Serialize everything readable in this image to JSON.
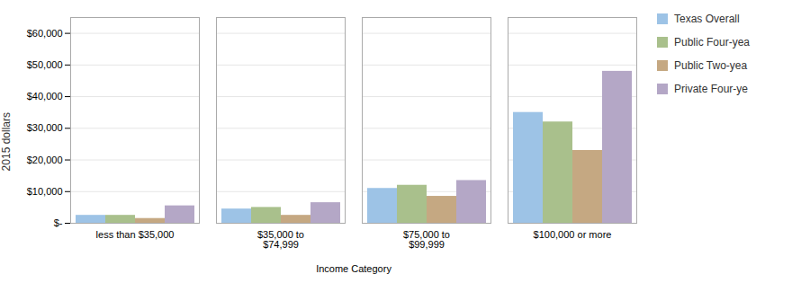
{
  "chart_data": {
    "type": "bar",
    "categories": [
      "less than $35,000",
      "$35,000 to\n$74,999",
      "$75,000 to\n$99,999",
      "$100,000 or more"
    ],
    "series": [
      {
        "name": "Texas Overall",
        "color": "#9dc3e6",
        "values": [
          2500,
          4500,
          11000,
          35000
        ]
      },
      {
        "name": "Public Four-yea",
        "color": "#a9c08c",
        "values": [
          2500,
          5000,
          12000,
          32000
        ]
      },
      {
        "name": "Public Two-yea",
        "color": "#c5a882",
        "values": [
          1500,
          2500,
          8500,
          23000
        ]
      },
      {
        "name": "Private Four-ye",
        "color": "#b4a7c6",
        "values": [
          5500,
          6500,
          13500,
          48000
        ]
      }
    ],
    "xlabel": "Income Category",
    "ylabel": "2015 dollars",
    "ylim": [
      0,
      65000
    ],
    "yticks": [
      {
        "value": 0,
        "label": "$-"
      },
      {
        "value": 10000,
        "label": "$10,000"
      },
      {
        "value": 20000,
        "label": "$20,000"
      },
      {
        "value": 30000,
        "label": "$30,000"
      },
      {
        "value": 40000,
        "label": "$40,000"
      },
      {
        "value": 50000,
        "label": "$50,000"
      },
      {
        "value": 60000,
        "label": "$60,000"
      }
    ],
    "grid": true,
    "legend": "right"
  }
}
